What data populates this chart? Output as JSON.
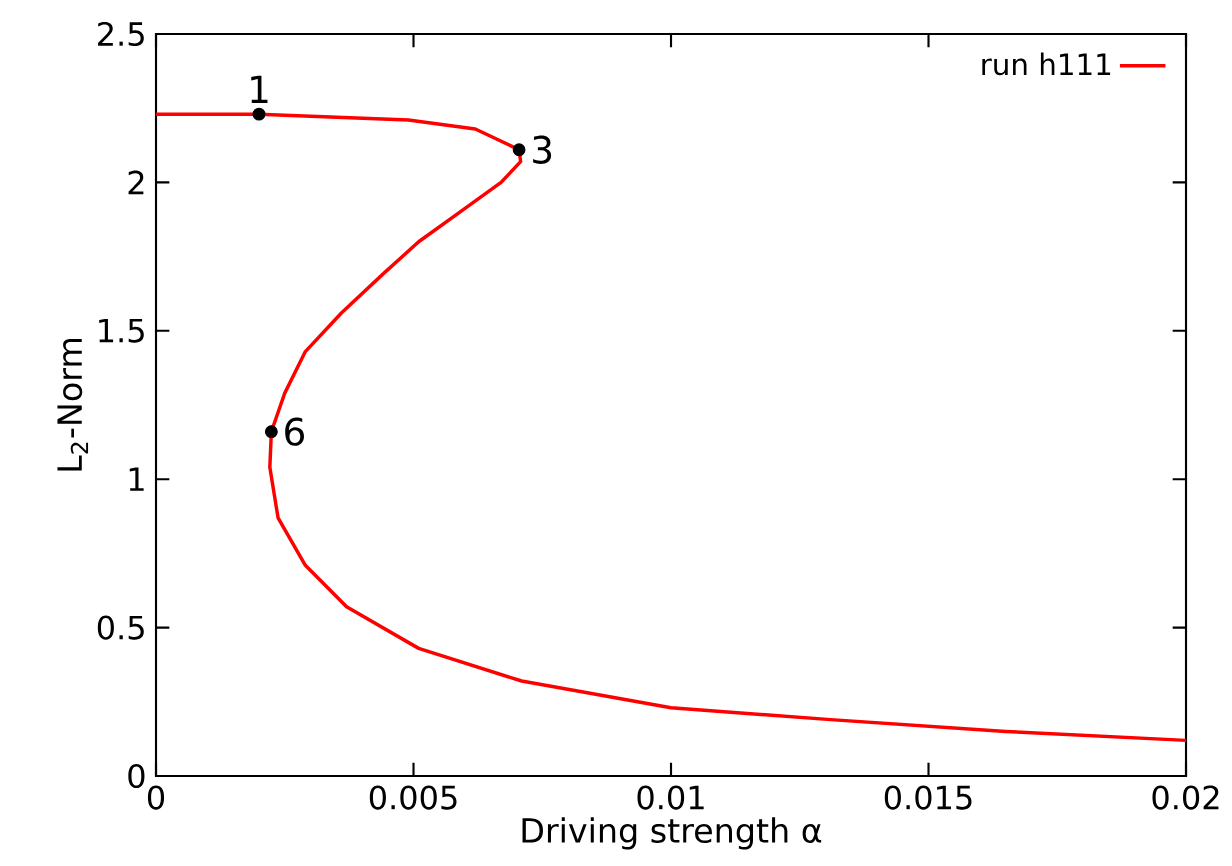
{
  "chart_data": {
    "type": "line",
    "xlabel": "Driving strength α",
    "ylabel": "L$_{2}$-Norm",
    "xlim": [
      0,
      0.02
    ],
    "ylim": [
      0,
      2.5
    ],
    "xticks": [
      0,
      0.005,
      0.01,
      0.015,
      0.02
    ],
    "yticks": [
      0,
      0.5,
      1,
      1.5,
      2,
      2.5
    ],
    "grid": false,
    "legend": "top right",
    "series": [
      {
        "name": "run h111",
        "color": "#ff0000",
        "marker": "none",
        "x": [
          0,
          0.002,
          0.0049,
          0.0062,
          0.00705,
          0.00708,
          0.0067,
          0.0059,
          0.0051,
          0.0044,
          0.0036,
          0.0029,
          0.0025,
          0.00224,
          0.00221,
          0.00237,
          0.0029,
          0.0037,
          0.0051,
          0.0071,
          0.01,
          0.0131,
          0.0165,
          0.02
        ],
        "values": [
          2.23,
          2.23,
          2.21,
          2.18,
          2.11,
          2.07,
          2.0,
          1.9,
          1.8,
          1.69,
          1.56,
          1.43,
          1.29,
          1.16,
          1.04,
          0.87,
          0.71,
          0.57,
          0.43,
          0.32,
          0.23,
          0.19,
          0.15,
          0.12
        ]
      },
      {
        "type": "scatter",
        "color": "#000000",
        "marker": "circle",
        "x": [
          0.002,
          0.00705,
          0.00224
        ],
        "values": [
          2.23,
          2.11,
          1.16
        ]
      }
    ],
    "annotations": [
      {
        "text": "1",
        "x": 0.002,
        "y": 2.23
      },
      {
        "text": "3",
        "x": 0.00705,
        "y": 2.11
      },
      {
        "text": "6",
        "x": 0.00224,
        "y": 1.16
      }
    ]
  }
}
